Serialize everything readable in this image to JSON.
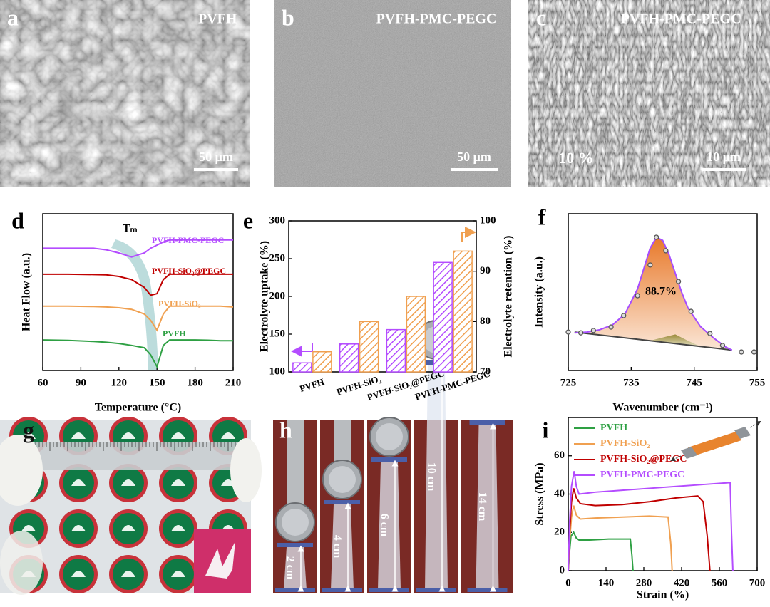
{
  "images": {
    "a": {
      "letter": "a",
      "title": "PVFH",
      "scalebar": "50 μm"
    },
    "b": {
      "letter": "b",
      "title": "PVFH-PMC-PEGC",
      "scalebar": "50 μm"
    },
    "c": {
      "letter": "c",
      "title": "PVFH-PMC-PEGC",
      "scalebar": "10 μm",
      "annotation": "10 %"
    },
    "g": {
      "letter": "g"
    },
    "h": {
      "letter": "h",
      "lengths": [
        "2 cm",
        "4 cm",
        "6 cm",
        "10 cm",
        "14 cm"
      ]
    }
  },
  "chart_data": [
    {
      "panel": "d",
      "type": "line",
      "xlabel": "Temperature (°C)",
      "ylabel": "Heat Flow (a.u.)",
      "annotation": "Tₘ",
      "x": [
        60,
        80,
        100,
        110,
        120,
        130,
        140,
        145,
        150,
        155,
        160,
        170,
        180,
        190,
        200,
        210
      ],
      "xlim": [
        60,
        210
      ],
      "xticks": [
        60,
        90,
        120,
        150,
        180,
        210
      ],
      "ylim": [
        0,
        10
      ],
      "series": [
        {
          "name": "PVFH-PMC-PEGC",
          "color": "#b44cff",
          "values": [
            7.8,
            7.8,
            7.8,
            7.7,
            7.5,
            7.24,
            7.5,
            7.8,
            8.0,
            8.2,
            8.33,
            8.33,
            8.33,
            8.33,
            8.33,
            8.33
          ]
        },
        {
          "name": "PVFH-SiO₂@PEGC",
          "color": "#c00000",
          "values": [
            6.14,
            6.14,
            6.12,
            6.1,
            6.0,
            5.8,
            5.3,
            4.8,
            4.9,
            5.8,
            6.14,
            6.14,
            6.14,
            6.14,
            6.14,
            6.14
          ]
        },
        {
          "name": "PVFH-SiO₂",
          "color": "#f0a050",
          "values": [
            4.1,
            4.1,
            4.08,
            4.05,
            4.0,
            3.9,
            3.6,
            3.2,
            2.57,
            3.6,
            4.1,
            4.1,
            4.1,
            4.1,
            4.1,
            4.05
          ]
        },
        {
          "name": "PVFH",
          "color": "#2ea043",
          "values": [
            1.95,
            1.92,
            1.85,
            1.8,
            1.72,
            1.6,
            1.45,
            1.0,
            0.24,
            1.6,
            1.95,
            1.95,
            1.95,
            1.93,
            1.9,
            1.9
          ]
        }
      ]
    },
    {
      "panel": "e",
      "type": "bar",
      "ylabel": "Electrolyte uptake (%)",
      "y2label": "Electrolyte retention (%)",
      "categories": [
        "PVFH",
        "PVFH-SiO₂",
        "PVFH-SiO₂@PEGC",
        "PVFH-PMC-PEGC"
      ],
      "ylim": [
        100,
        300
      ],
      "yticks": [
        100,
        150,
        200,
        250,
        300
      ],
      "y2lim": [
        70,
        100
      ],
      "y2ticks": [
        70,
        80,
        90,
        100
      ],
      "series": [
        {
          "color": "#b44cff",
          "values": [
            112,
            137,
            156,
            245
          ]
        },
        {
          "color": "#f0a050",
          "values": [
            74,
            80,
            85,
            94
          ],
          "axis": "y2"
        }
      ]
    },
    {
      "panel": "f",
      "type": "scatter",
      "xlabel": "Wavenumber (cm⁻¹)",
      "ylabel": "Intensity (a.u.)",
      "annotation": "88.7%",
      "xlim": [
        725,
        755
      ],
      "xticks": [
        725,
        735,
        745,
        755
      ],
      "ylim": [
        0,
        10
      ],
      "color": "#dddddd",
      "x": [
        725,
        727,
        729,
        731.8,
        733.8,
        736,
        738,
        739,
        740.5,
        742.5,
        744.5,
        747.5,
        749.5,
        752.5,
        754.5
      ],
      "values": [
        2.45,
        2.4,
        2.55,
        2.77,
        3.5,
        4.77,
        6.73,
        8.5,
        7.64,
        5.68,
        3.77,
        2.36,
        1.6,
        1.18,
        1.18
      ],
      "fit": {
        "color": "#a64dff",
        "x": [
          726,
          728,
          730,
          732,
          734,
          736,
          737,
          738,
          739,
          740,
          741,
          742,
          743,
          744,
          746,
          748,
          750,
          751
        ],
        "values": [
          2.4,
          2.45,
          2.6,
          2.9,
          3.6,
          5.2,
          6.5,
          7.8,
          8.5,
          8.3,
          7.4,
          6.2,
          5.0,
          4.0,
          2.8,
          2.1,
          1.5,
          1.3
        ]
      },
      "baseline": {
        "color": "#444444",
        "x": [
          726,
          751
        ],
        "values": [
          2.45,
          1.3
        ]
      },
      "minor_peak": {
        "color": "#9a8a3a",
        "x": [
          738,
          740,
          742,
          744,
          746
        ],
        "values": [
          1.9,
          2.1,
          2.3,
          1.9,
          1.53
        ]
      }
    },
    {
      "panel": "i",
      "type": "line",
      "xlabel": "Strain (%)",
      "ylabel": "Stress (MPa)",
      "legend": "upper left",
      "xlim": [
        0,
        700
      ],
      "xticks": [
        0,
        140,
        280,
        420,
        560,
        700
      ],
      "ylim": [
        0,
        80
      ],
      "yticks": [
        0,
        20,
        40,
        60
      ],
      "series": [
        {
          "name": "PVFH",
          "color": "#2ea043",
          "x": [
            0,
            5,
            10,
            20,
            30,
            40,
            80,
            150,
            230,
            236,
            240
          ],
          "values": [
            0,
            10,
            18,
            20,
            17,
            16,
            16,
            16.5,
            16.5,
            8,
            0
          ]
        },
        {
          "name": "PVFH-SiO₂",
          "color": "#f0a050",
          "x": [
            0,
            5,
            12,
            20,
            30,
            45,
            100,
            200,
            300,
            370,
            380,
            385
          ],
          "values": [
            0,
            15,
            28,
            34,
            29,
            27,
            27.5,
            28,
            28.5,
            28,
            14,
            0
          ]
        },
        {
          "name": "PVFH-SiO₂@PEGC",
          "color": "#c00000",
          "x": [
            0,
            5,
            12,
            20,
            30,
            45,
            100,
            200,
            300,
            400,
            480,
            500,
            515,
            525
          ],
          "values": [
            0,
            20,
            36,
            43,
            38,
            35,
            34,
            34.5,
            36,
            38,
            39,
            36,
            18,
            0
          ]
        },
        {
          "name": "PVFH-PMC-PEGC",
          "color": "#b44cff",
          "x": [
            0,
            5,
            12,
            22,
            30,
            40,
            100,
            200,
            300,
            400,
            500,
            600,
            605,
            610
          ],
          "values": [
            0,
            25,
            44,
            52,
            44,
            40,
            41,
            42,
            43,
            44,
            45,
            46,
            20,
            0
          ]
        }
      ]
    }
  ]
}
